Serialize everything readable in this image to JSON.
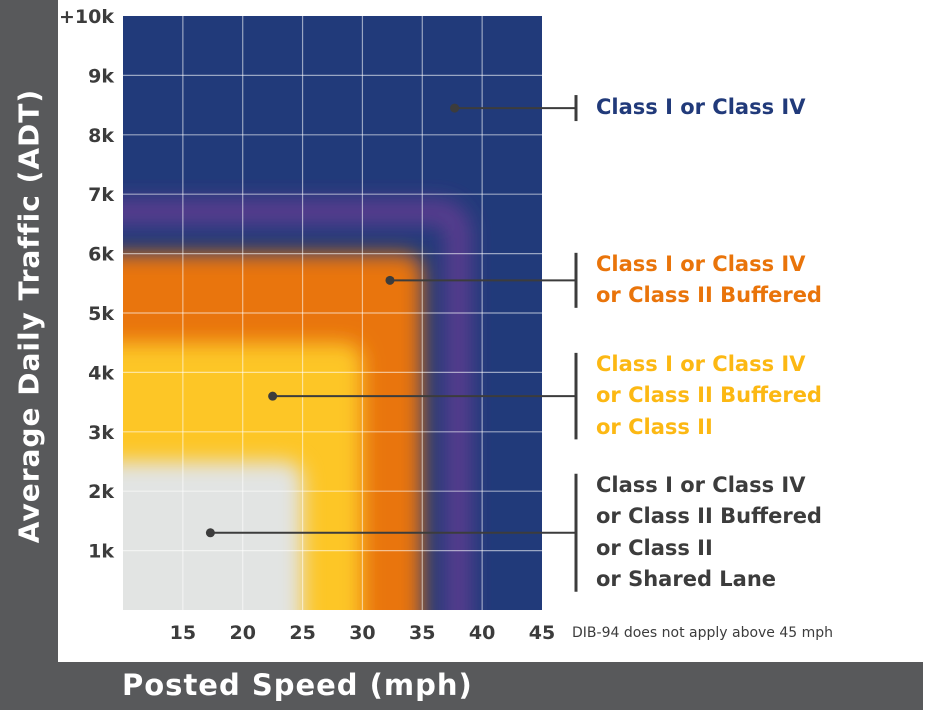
{
  "chart_data": {
    "type": "heatmap",
    "title": "",
    "xlabel": "Posted Speed (mph)",
    "ylabel": "Average Daily Traffic (ADT)",
    "x_ticks": [
      "15",
      "20",
      "25",
      "30",
      "35",
      "40",
      "45"
    ],
    "x_tick_values": [
      15,
      20,
      25,
      30,
      35,
      40,
      45
    ],
    "y_ticks": [
      "1k",
      "2k",
      "3k",
      "4k",
      "5k",
      "6k",
      "7k",
      "8k",
      "9k",
      "+10k"
    ],
    "y_tick_values": [
      1000,
      2000,
      3000,
      4000,
      5000,
      6000,
      7000,
      8000,
      9000,
      10000
    ],
    "xlim": [
      10,
      45
    ],
    "ylim": [
      0,
      10000
    ],
    "grid": true,
    "zones": [
      {
        "id": "zone1",
        "color": "#e2e4e3",
        "max_speed_mph": 25,
        "max_adt": 2500,
        "marker_speed_mph": 17.3,
        "marker_adt": 1300,
        "options": [
          "Class I or Class IV",
          "or Class II Buffered",
          "or Class II",
          "or Shared Lane"
        ],
        "label_color": "#3c3c3c"
      },
      {
        "id": "zone2",
        "color": "#fdc628",
        "max_speed_mph": 30,
        "max_adt": 4500,
        "marker_speed_mph": 22.5,
        "marker_adt": 3600,
        "options": [
          "Class I or Class IV",
          "or Class II Buffered",
          "or Class II"
        ],
        "label_color": "#fcb813"
      },
      {
        "id": "zone3",
        "color": "#e9740a",
        "max_speed_mph": 35,
        "max_adt": 6000,
        "marker_speed_mph": 32.3,
        "marker_adt": 5550,
        "options": [
          "Class I or Class IV",
          "or Class II Buffered"
        ],
        "label_color": "#e9740a"
      },
      {
        "id": "zone4",
        "color": "#213a7a",
        "max_speed_mph": 45,
        "max_adt": 10000,
        "marker_speed_mph": 37.7,
        "marker_adt": 8450,
        "options": [
          "Class I or Class IV"
        ],
        "label_color": "#213a7a"
      }
    ],
    "annotations": [
      "DIB-94 does not apply above 45 mph"
    ]
  },
  "note": "DIB-94 does not apply above 45 mph"
}
